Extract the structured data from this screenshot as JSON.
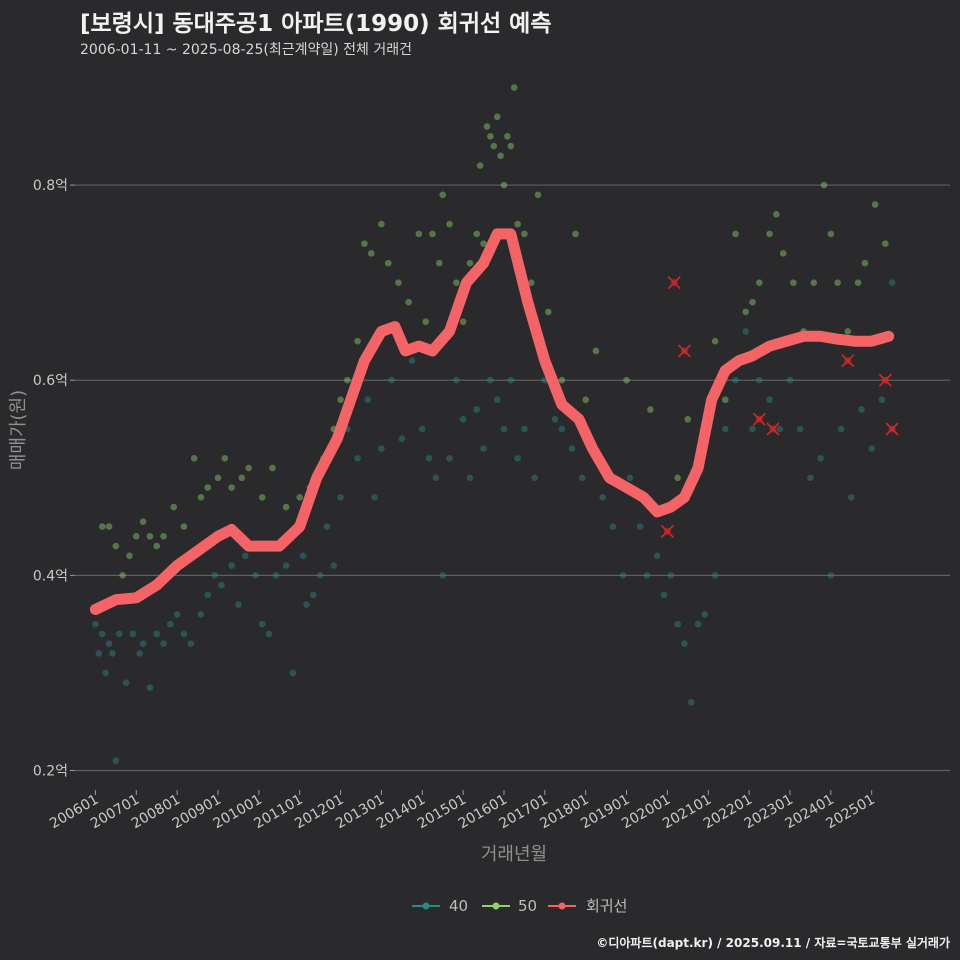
{
  "header": {
    "title": "[보령시] 동대주공1 아파트(1990) 회귀선 예측",
    "subtitle": "2006-01-11 ~ 2025-08-25(최근계약일) 전체 거래건"
  },
  "footer": {
    "credit": "©디아파트(dapt.kr) / 2025.09.11 / 자료=국토교통부 실거래가"
  },
  "chart_data": {
    "type": "scatter",
    "xlabel": "거래년월",
    "ylabel": "매매가(원)",
    "x_range": [
      "2005-07",
      "2026-12"
    ],
    "ylim": [
      0.18,
      0.92
    ],
    "y_ticks": [
      {
        "value": 0.2,
        "label": "0.2억"
      },
      {
        "value": 0.4,
        "label": "0.4억"
      },
      {
        "value": 0.6,
        "label": "0.6억"
      },
      {
        "value": 0.8,
        "label": "0.8억"
      }
    ],
    "x_ticks": [
      "200601",
      "200701",
      "200801",
      "200901",
      "201001",
      "201101",
      "201201",
      "201301",
      "201401",
      "201501",
      "201601",
      "201701",
      "201801",
      "201901",
      "202001",
      "202101",
      "202201",
      "202301",
      "202401",
      "202501"
    ],
    "grid": true,
    "legend_position": "bottom",
    "colors": {
      "s40": "#2a8a86",
      "s50": "#8fd16a",
      "regression": "#f46467",
      "outlier": "#d62728"
    },
    "series": [
      {
        "name": "40",
        "points": [
          [
            "2006-01",
            0.35
          ],
          [
            "2006-02",
            0.32
          ],
          [
            "2006-03",
            0.34
          ],
          [
            "2006-04",
            0.3
          ],
          [
            "2006-05",
            0.33
          ],
          [
            "2006-06",
            0.32
          ],
          [
            "2006-07",
            0.21
          ],
          [
            "2006-08",
            0.34
          ],
          [
            "2006-10",
            0.29
          ],
          [
            "2006-12",
            0.34
          ],
          [
            "2007-02",
            0.32
          ],
          [
            "2007-03",
            0.33
          ],
          [
            "2007-05",
            0.285
          ],
          [
            "2007-07",
            0.34
          ],
          [
            "2007-09",
            0.33
          ],
          [
            "2007-11",
            0.35
          ],
          [
            "2008-01",
            0.36
          ],
          [
            "2008-03",
            0.34
          ],
          [
            "2008-05",
            0.33
          ],
          [
            "2008-08",
            0.36
          ],
          [
            "2008-10",
            0.38
          ],
          [
            "2008-12",
            0.4
          ],
          [
            "2009-02",
            0.39
          ],
          [
            "2009-05",
            0.41
          ],
          [
            "2009-07",
            0.37
          ],
          [
            "2009-09",
            0.42
          ],
          [
            "2009-12",
            0.4
          ],
          [
            "2010-02",
            0.35
          ],
          [
            "2010-04",
            0.34
          ],
          [
            "2010-06",
            0.4
          ],
          [
            "2010-09",
            0.41
          ],
          [
            "2010-11",
            0.3
          ],
          [
            "2011-02",
            0.42
          ],
          [
            "2011-03",
            0.37
          ],
          [
            "2011-05",
            0.38
          ],
          [
            "2011-07",
            0.4
          ],
          [
            "2011-09",
            0.45
          ],
          [
            "2011-11",
            0.41
          ],
          [
            "2012-01",
            0.48
          ],
          [
            "2012-03",
            0.55
          ],
          [
            "2012-06",
            0.52
          ],
          [
            "2012-09",
            0.58
          ],
          [
            "2012-11",
            0.48
          ],
          [
            "2013-01",
            0.53
          ],
          [
            "2013-04",
            0.6
          ],
          [
            "2013-07",
            0.54
          ],
          [
            "2013-10",
            0.62
          ],
          [
            "2014-01",
            0.55
          ],
          [
            "2014-03",
            0.52
          ],
          [
            "2014-05",
            0.5
          ],
          [
            "2014-07",
            0.4
          ],
          [
            "2014-09",
            0.52
          ],
          [
            "2014-11",
            0.6
          ],
          [
            "2015-01",
            0.56
          ],
          [
            "2015-03",
            0.5
          ],
          [
            "2015-05",
            0.57
          ],
          [
            "2015-07",
            0.53
          ],
          [
            "2015-09",
            0.6
          ],
          [
            "2015-11",
            0.58
          ],
          [
            "2016-01",
            0.55
          ],
          [
            "2016-03",
            0.6
          ],
          [
            "2016-05",
            0.52
          ],
          [
            "2016-07",
            0.55
          ],
          [
            "2016-10",
            0.5
          ],
          [
            "2017-01",
            0.6
          ],
          [
            "2017-04",
            0.56
          ],
          [
            "2017-06",
            0.55
          ],
          [
            "2017-09",
            0.53
          ],
          [
            "2017-12",
            0.5
          ],
          [
            "2018-03",
            0.53
          ],
          [
            "2018-06",
            0.48
          ],
          [
            "2018-09",
            0.45
          ],
          [
            "2018-12",
            0.4
          ],
          [
            "2019-02",
            0.5
          ],
          [
            "2019-05",
            0.45
          ],
          [
            "2019-07",
            0.4
          ],
          [
            "2019-10",
            0.42
          ],
          [
            "2019-12",
            0.38
          ],
          [
            "2020-02",
            0.4
          ],
          [
            "2020-04",
            0.35
          ],
          [
            "2020-06",
            0.33
          ],
          [
            "2020-08",
            0.27
          ],
          [
            "2020-10",
            0.35
          ],
          [
            "2020-12",
            0.36
          ],
          [
            "2021-03",
            0.4
          ],
          [
            "2021-06",
            0.55
          ],
          [
            "2021-09",
            0.6
          ],
          [
            "2021-12",
            0.65
          ],
          [
            "2022-02",
            0.55
          ],
          [
            "2022-04",
            0.6
          ],
          [
            "2022-07",
            0.58
          ],
          [
            "2022-10",
            0.55
          ],
          [
            "2023-01",
            0.6
          ],
          [
            "2023-04",
            0.55
          ],
          [
            "2023-07",
            0.5
          ],
          [
            "2023-10",
            0.52
          ],
          [
            "2024-01",
            0.4
          ],
          [
            "2024-04",
            0.55
          ],
          [
            "2024-07",
            0.48
          ],
          [
            "2024-10",
            0.57
          ],
          [
            "2025-01",
            0.53
          ],
          [
            "2025-04",
            0.58
          ],
          [
            "2025-07",
            0.7
          ]
        ]
      },
      {
        "name": "50",
        "points": [
          [
            "2006-03",
            0.45
          ],
          [
            "2006-05",
            0.45
          ],
          [
            "2006-07",
            0.43
          ],
          [
            "2006-09",
            0.4
          ],
          [
            "2006-11",
            0.42
          ],
          [
            "2007-01",
            0.44
          ],
          [
            "2007-03",
            0.455
          ],
          [
            "2007-05",
            0.44
          ],
          [
            "2007-07",
            0.43
          ],
          [
            "2007-09",
            0.44
          ],
          [
            "2007-12",
            0.47
          ],
          [
            "2008-03",
            0.45
          ],
          [
            "2008-06",
            0.52
          ],
          [
            "2008-08",
            0.48
          ],
          [
            "2008-10",
            0.49
          ],
          [
            "2009-01",
            0.5
          ],
          [
            "2009-03",
            0.52
          ],
          [
            "2009-05",
            0.49
          ],
          [
            "2009-08",
            0.5
          ],
          [
            "2009-10",
            0.51
          ],
          [
            "2010-02",
            0.48
          ],
          [
            "2010-05",
            0.51
          ],
          [
            "2010-09",
            0.47
          ],
          [
            "2011-01",
            0.48
          ],
          [
            "2011-04",
            0.49
          ],
          [
            "2011-08",
            0.52
          ],
          [
            "2011-11",
            0.55
          ],
          [
            "2012-01",
            0.58
          ],
          [
            "2012-03",
            0.6
          ],
          [
            "2012-06",
            0.64
          ],
          [
            "2012-08",
            0.74
          ],
          [
            "2012-10",
            0.73
          ],
          [
            "2013-01",
            0.76
          ],
          [
            "2013-03",
            0.72
          ],
          [
            "2013-06",
            0.7
          ],
          [
            "2013-09",
            0.68
          ],
          [
            "2013-12",
            0.75
          ],
          [
            "2014-02",
            0.66
          ],
          [
            "2014-04",
            0.75
          ],
          [
            "2014-06",
            0.72
          ],
          [
            "2014-07",
            0.79
          ],
          [
            "2014-09",
            0.76
          ],
          [
            "2014-11",
            0.7
          ],
          [
            "2015-01",
            0.66
          ],
          [
            "2015-03",
            0.72
          ],
          [
            "2015-05",
            0.75
          ],
          [
            "2015-06",
            0.82
          ],
          [
            "2015-07",
            0.74
          ],
          [
            "2015-08",
            0.86
          ],
          [
            "2015-09",
            0.85
          ],
          [
            "2015-10",
            0.84
          ],
          [
            "2015-11",
            0.87
          ],
          [
            "2015-12",
            0.83
          ],
          [
            "2016-01",
            0.8
          ],
          [
            "2016-02",
            0.85
          ],
          [
            "2016-03",
            0.84
          ],
          [
            "2016-04",
            0.9
          ],
          [
            "2016-05",
            0.76
          ],
          [
            "2016-07",
            0.75
          ],
          [
            "2016-09",
            0.7
          ],
          [
            "2016-11",
            0.79
          ],
          [
            "2017-02",
            0.67
          ],
          [
            "2017-06",
            0.6
          ],
          [
            "2017-10",
            0.75
          ],
          [
            "2018-01",
            0.58
          ],
          [
            "2018-04",
            0.63
          ],
          [
            "2019-01",
            0.6
          ],
          [
            "2019-08",
            0.57
          ],
          [
            "2020-04",
            0.5
          ],
          [
            "2020-07",
            0.56
          ],
          [
            "2021-03",
            0.64
          ],
          [
            "2021-06",
            0.58
          ],
          [
            "2021-09",
            0.75
          ],
          [
            "2021-12",
            0.67
          ],
          [
            "2022-02",
            0.68
          ],
          [
            "2022-04",
            0.7
          ],
          [
            "2022-07",
            0.75
          ],
          [
            "2022-09",
            0.77
          ],
          [
            "2022-11",
            0.73
          ],
          [
            "2023-02",
            0.7
          ],
          [
            "2023-05",
            0.65
          ],
          [
            "2023-08",
            0.7
          ],
          [
            "2023-11",
            0.8
          ],
          [
            "2024-01",
            0.75
          ],
          [
            "2024-03",
            0.7
          ],
          [
            "2024-06",
            0.65
          ],
          [
            "2024-09",
            0.7
          ],
          [
            "2024-11",
            0.72
          ],
          [
            "2025-02",
            0.78
          ],
          [
            "2025-05",
            0.74
          ]
        ]
      }
    ],
    "outliers": [
      [
        "2020-03",
        0.7
      ],
      [
        "2020-06",
        0.63
      ],
      [
        "2020-01",
        0.445
      ],
      [
        "2022-04",
        0.56
      ],
      [
        "2022-08",
        0.55
      ],
      [
        "2024-06",
        0.62
      ],
      [
        "2025-05",
        0.6
      ],
      [
        "2025-07",
        0.55
      ]
    ],
    "regression": {
      "name": "회귀선",
      "points": [
        [
          "2006-01",
          0.365
        ],
        [
          "2006-07",
          0.375
        ],
        [
          "2007-01",
          0.377
        ],
        [
          "2007-07",
          0.39
        ],
        [
          "2008-01",
          0.41
        ],
        [
          "2008-07",
          0.425
        ],
        [
          "2009-01",
          0.44
        ],
        [
          "2009-05",
          0.447
        ],
        [
          "2009-10",
          0.43
        ],
        [
          "2010-03",
          0.43
        ],
        [
          "2010-07",
          0.43
        ],
        [
          "2011-01",
          0.45
        ],
        [
          "2011-06",
          0.5
        ],
        [
          "2011-12",
          0.54
        ],
        [
          "2012-04",
          0.58
        ],
        [
          "2012-08",
          0.62
        ],
        [
          "2013-01",
          0.65
        ],
        [
          "2013-05",
          0.655
        ],
        [
          "2013-08",
          0.63
        ],
        [
          "2013-12",
          0.635
        ],
        [
          "2014-04",
          0.63
        ],
        [
          "2014-09",
          0.65
        ],
        [
          "2015-02",
          0.7
        ],
        [
          "2015-07",
          0.72
        ],
        [
          "2015-11",
          0.75
        ],
        [
          "2016-03",
          0.75
        ],
        [
          "2016-08",
          0.68
        ],
        [
          "2017-01",
          0.62
        ],
        [
          "2017-06",
          0.575
        ],
        [
          "2017-11",
          0.56
        ],
        [
          "2018-03",
          0.53
        ],
        [
          "2018-08",
          0.5
        ],
        [
          "2019-01",
          0.49
        ],
        [
          "2019-06",
          0.48
        ],
        [
          "2019-10",
          0.465
        ],
        [
          "2020-02",
          0.47
        ],
        [
          "2020-06",
          0.48
        ],
        [
          "2020-10",
          0.51
        ],
        [
          "2021-02",
          0.58
        ],
        [
          "2021-06",
          0.61
        ],
        [
          "2021-10",
          0.62
        ],
        [
          "2022-02",
          0.625
        ],
        [
          "2022-07",
          0.635
        ],
        [
          "2022-12",
          0.64
        ],
        [
          "2023-05",
          0.645
        ],
        [
          "2023-10",
          0.645
        ],
        [
          "2024-03",
          0.642
        ],
        [
          "2024-08",
          0.64
        ],
        [
          "2025-01",
          0.64
        ],
        [
          "2025-06",
          0.645
        ]
      ]
    }
  }
}
